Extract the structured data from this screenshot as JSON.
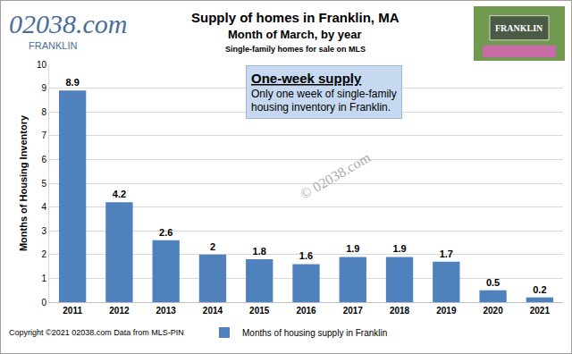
{
  "chart_data": {
    "type": "bar",
    "title": "Supply of homes in Franklin, MA",
    "subtitle": "Month of March, by year",
    "subtitle2": "Single-family homes for sale on MLS",
    "logo": {
      "text": "02038.com",
      "subtext": "FRANKLIN"
    },
    "image_text": "FRANKLIN",
    "callout": {
      "title": "One-week supply",
      "lines": [
        "Only one week of single-family",
        "housing inventory in Franklin."
      ]
    },
    "watermark": "© 02038.com",
    "source": "Copyright ©2021 02038.com Data from MLS-PIN",
    "y_label": "Months of Housing Inventory",
    "categories": [
      "2011",
      "2012",
      "2013",
      "2014",
      "2015",
      "2016",
      "2017",
      "2018",
      "2019",
      "2020",
      "2021"
    ],
    "series": [
      {
        "name": "Months of housing supply in Franklin",
        "color": "#4f81bd",
        "values": [
          8.9,
          4.2,
          2.6,
          2,
          1.8,
          1.6,
          1.9,
          1.9,
          1.7,
          0.5,
          0.2
        ]
      }
    ],
    "ylim": [
      0,
      10
    ],
    "yticks": [
      0,
      1,
      2,
      3,
      4,
      5,
      6,
      7,
      8,
      9,
      10
    ],
    "grid": true,
    "data_labels": true,
    "legend": "bottom"
  }
}
